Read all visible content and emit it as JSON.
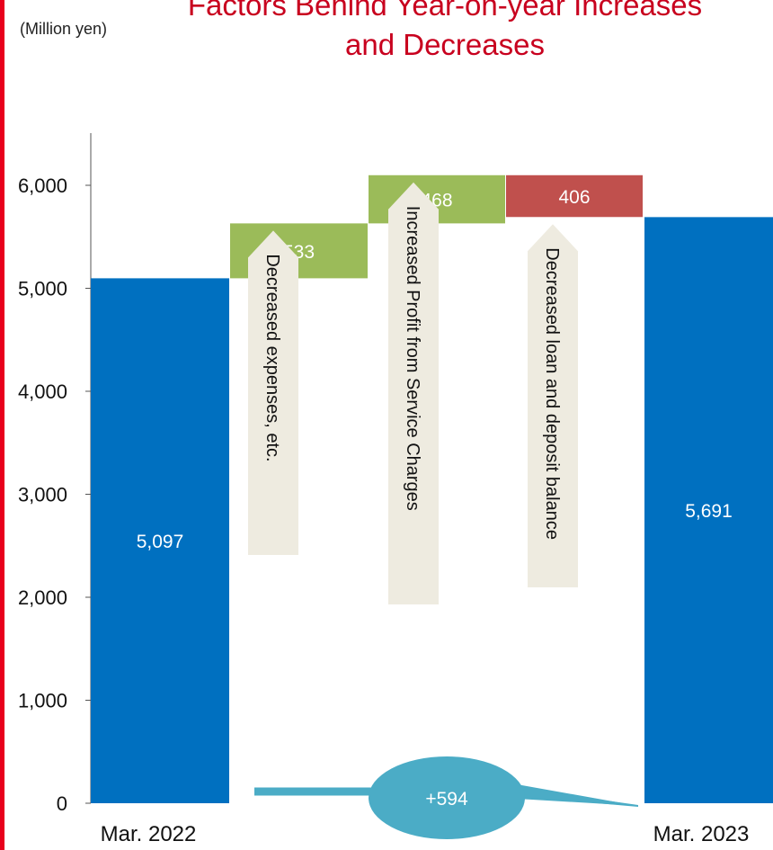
{
  "unit_label": "(Million yen)",
  "title_line1": "Factors Behind Year-on-year Increases",
  "title_line2": "and Decreases",
  "colors": {
    "total": "#0070c0",
    "increase": "#9bbb59",
    "decrease": "#c0504d",
    "annotation": "#eeebe0",
    "change": "#4bacc6",
    "title": "#c8001e",
    "left_rule": "#e8001c"
  },
  "chart_data": {
    "type": "bar",
    "subtype": "waterfall",
    "title": "Factors Behind Year-on-year Increases and Decreases",
    "ylabel": "(Million yen)",
    "ylim": [
      0,
      6500
    ],
    "yticks": [
      0,
      1000,
      2000,
      3000,
      4000,
      5000,
      6000
    ],
    "ytick_labels": [
      "0",
      "1,000",
      "2,000",
      "3,000",
      "4,000",
      "5,000",
      "6,000"
    ],
    "grid": false,
    "steps": [
      {
        "label": "Mar. 2022",
        "kind": "total",
        "start": 0,
        "end": 5097,
        "value_label": "5,097",
        "annotation": ""
      },
      {
        "label": "",
        "kind": "increase",
        "start": 5097,
        "end": 5630,
        "value_label": "533",
        "annotation": "Decreased expenses, etc."
      },
      {
        "label": "",
        "kind": "increase",
        "start": 5630,
        "end": 6098,
        "value_label": "468",
        "annotation": "Increased Profit from Service Charges"
      },
      {
        "label": "",
        "kind": "decrease",
        "start": 6098,
        "end": 5692,
        "value_label": "406",
        "annotation": "Decreased loan and deposit balance"
      },
      {
        "label": "Mar. 2023",
        "kind": "total",
        "start": 0,
        "end": 5691,
        "value_label": "5,691",
        "annotation": ""
      }
    ],
    "change_label": "+594"
  }
}
